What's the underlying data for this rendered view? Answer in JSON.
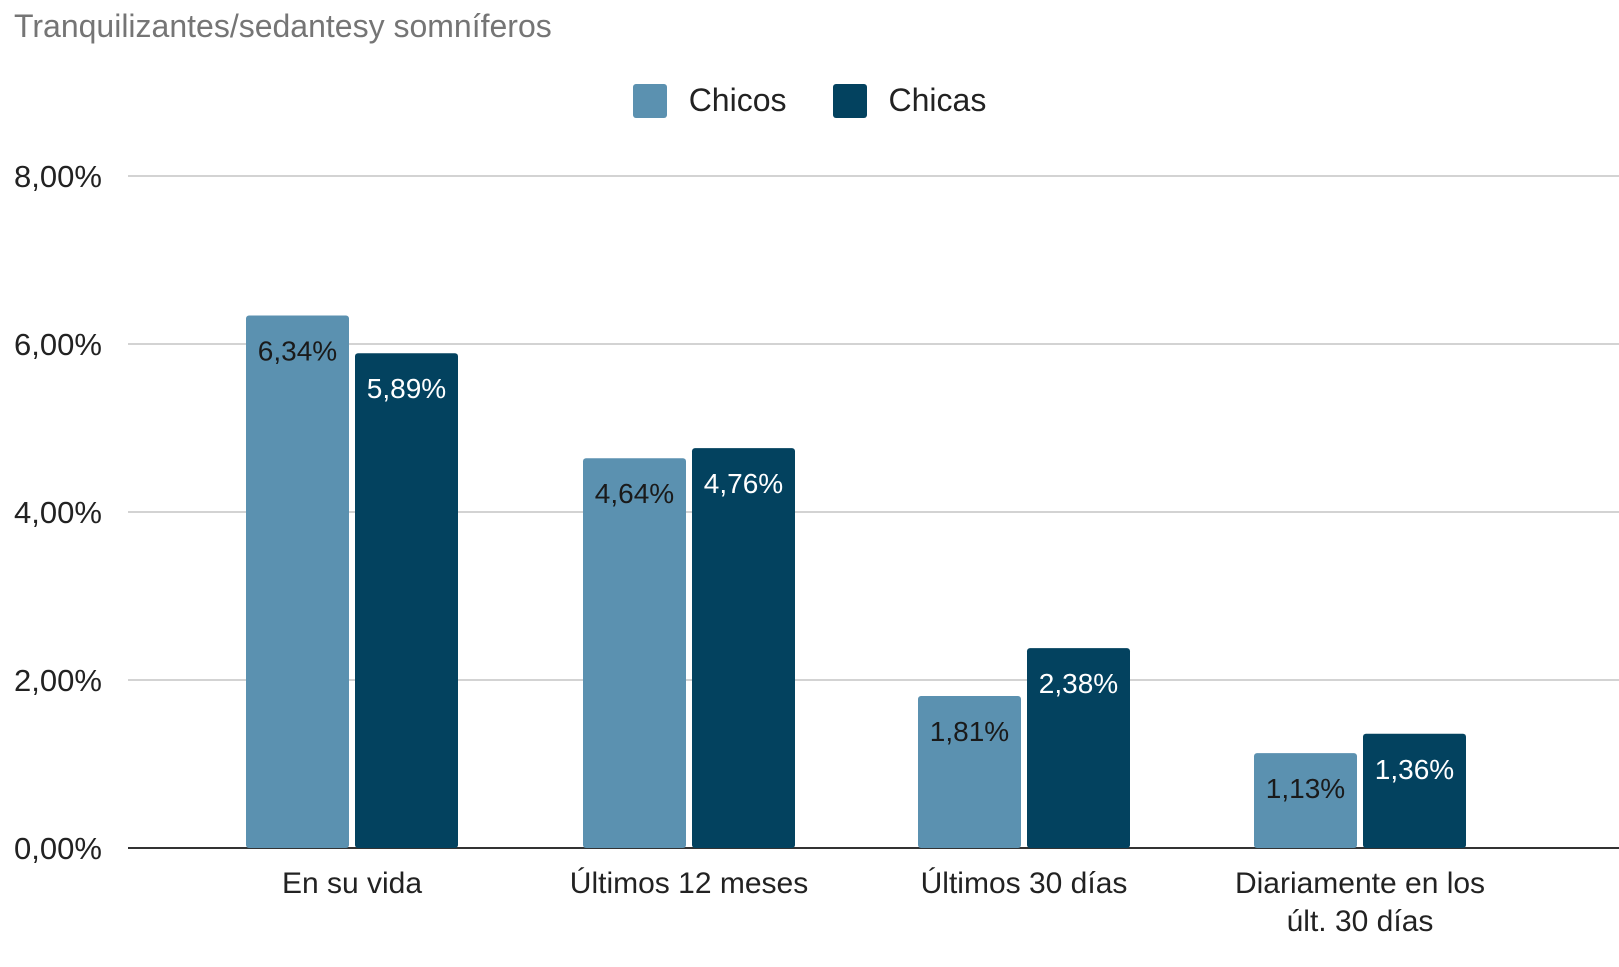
{
  "chart_data": {
    "type": "bar",
    "title": "Tranquilizantes/sedantesy somníferos",
    "categories": [
      [
        "En su vida"
      ],
      [
        "Últimos 12 meses"
      ],
      [
        "Últimos 30 días"
      ],
      [
        "Diariamente en los",
        "últ. 30 días"
      ]
    ],
    "series": [
      {
        "name": "Chicos",
        "color": "#5b91b0",
        "label_color": "#1a1a1a",
        "values": [
          6.34,
          4.64,
          1.81,
          1.13
        ],
        "data_labels": [
          "6,34%",
          "4,64%",
          "1,81%",
          "1,13%"
        ]
      },
      {
        "name": "Chicas",
        "color": "#03425f",
        "label_color": "#ffffff",
        "values": [
          5.89,
          4.76,
          2.38,
          1.36
        ],
        "data_labels": [
          "5,89%",
          "4,76%",
          "2,38%",
          "1,36%"
        ]
      }
    ],
    "ylim": [
      0,
      8
    ],
    "yticks": [
      0,
      2,
      4,
      6,
      8
    ],
    "ytick_labels": [
      "0,00%",
      "2,00%",
      "4,00%",
      "6,00%",
      "8,00%"
    ],
    "xlabel": "",
    "ylabel": "",
    "grid": true,
    "legend_position": "top-center"
  }
}
